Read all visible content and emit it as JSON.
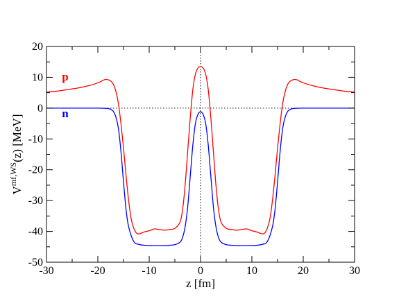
{
  "chart_data": {
    "type": "line",
    "xlabel": "z [fm]",
    "ylabel_main": "V",
    "ylabel_sup": "mf,WS",
    "ylabel_tail": "(z) [MeV]",
    "xlim": [
      -30,
      30
    ],
    "ylim": [
      -50,
      20
    ],
    "xticks": [
      -30,
      -20,
      -10,
      0,
      10,
      20,
      30
    ],
    "yticks": [
      20,
      10,
      0,
      -10,
      -20,
      -30,
      -40,
      -50
    ],
    "grid": false,
    "reference_lines": [
      {
        "orientation": "horizontal",
        "value": 0,
        "style": "dotted"
      },
      {
        "orientation": "vertical",
        "value": 0,
        "style": "dotted"
      }
    ],
    "series": [
      {
        "name": "p",
        "color": "#ff0000",
        "label_position": [
          -27,
          9
        ],
        "x": [
          0,
          0.5,
          1,
          1.5,
          2,
          2.5,
          3,
          3.5,
          4,
          5,
          6,
          7,
          8,
          9,
          10,
          11,
          12,
          12.5,
          13,
          13.5,
          14,
          14.5,
          15,
          15.5,
          16,
          16.5,
          17,
          17.5,
          18,
          18.5,
          19,
          20,
          22,
          24,
          26,
          28,
          30
        ],
        "y": [
          13.5,
          13.0,
          11.0,
          6.0,
          -3.0,
          -14.0,
          -25.0,
          -33.0,
          -37.0,
          -39.0,
          -39.4,
          -39.6,
          -39.4,
          -39.2,
          -39.8,
          -40.2,
          -40.8,
          -40.5,
          -39.0,
          -36.0,
          -30.0,
          -22.0,
          -13.0,
          -5.0,
          1.5,
          5.5,
          7.8,
          8.8,
          9.2,
          9.3,
          9.0,
          8.2,
          7.2,
          6.5,
          6.0,
          5.5,
          5.2
        ]
      },
      {
        "name": "n",
        "color": "#0000ff",
        "label_position": [
          -27,
          -3
        ],
        "x": [
          0,
          0.5,
          1,
          1.5,
          2,
          2.5,
          3,
          3.5,
          4,
          5,
          6,
          7,
          8,
          9,
          10,
          11,
          12,
          13,
          14,
          14.5,
          15,
          15.5,
          16,
          16.5,
          17,
          17.5,
          18,
          19,
          20,
          22,
          25,
          30
        ],
        "y": [
          -1.2,
          -2.0,
          -5.0,
          -12.0,
          -22.0,
          -32.0,
          -38.5,
          -42.0,
          -43.5,
          -44.3,
          -44.5,
          -44.6,
          -44.6,
          -44.6,
          -44.6,
          -44.5,
          -44.2,
          -43.3,
          -38.5,
          -33.0,
          -24.0,
          -14.0,
          -6.5,
          -2.8,
          -1.0,
          -0.4,
          -0.15,
          -0.05,
          0.0,
          0.0,
          0.0,
          0.0
        ]
      }
    ]
  }
}
